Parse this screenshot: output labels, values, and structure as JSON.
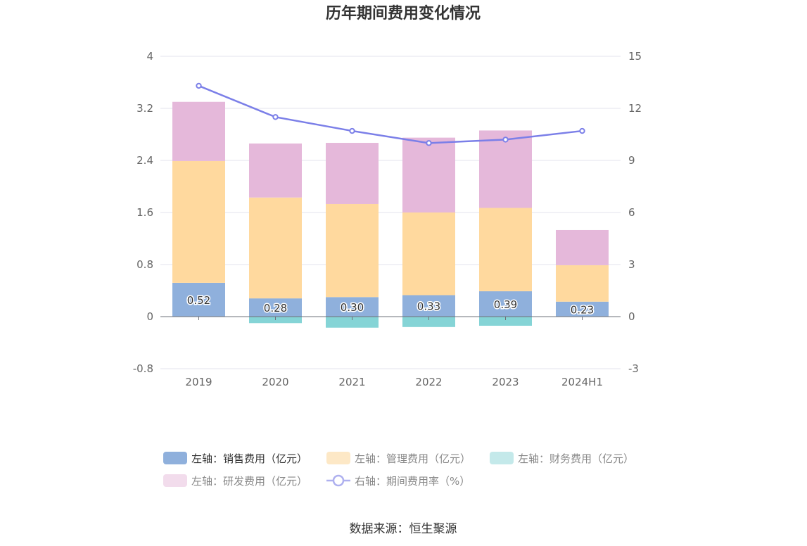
{
  "chart_data": {
    "type": "bar",
    "title": "历年期间费用变化情况",
    "categories": [
      "2019",
      "2020",
      "2021",
      "2022",
      "2023",
      "2024H1"
    ],
    "stacked": true,
    "left_axis": {
      "ylim": [
        -0.8,
        4
      ],
      "ticks": [
        "-0.8",
        "0",
        "0.8",
        "1.6",
        "2.4",
        "3.2",
        "4"
      ],
      "tick_values": [
        -0.8,
        0,
        0.8,
        1.6,
        2.4,
        3.2,
        4
      ]
    },
    "right_axis": {
      "ylim": [
        -3,
        15
      ],
      "ticks": [
        "-3",
        "0",
        "3",
        "6",
        "9",
        "12",
        "15"
      ],
      "tick_values": [
        -3,
        0,
        3,
        6,
        9,
        12,
        15
      ]
    },
    "series": [
      {
        "name": "左轴：销售费用（亿元）",
        "axis": "left",
        "kind": "bar",
        "color": "#8fb0dc",
        "values": [
          0.52,
          0.28,
          0.3,
          0.33,
          0.39,
          0.23
        ],
        "labels": [
          "0.52",
          "0.28",
          "0.30",
          "0.33",
          "0.39",
          "0.23"
        ]
      },
      {
        "name": "左轴：管理费用（亿元）",
        "axis": "left",
        "kind": "bar",
        "color": "#ffd99e",
        "values": [
          1.87,
          1.55,
          1.43,
          1.27,
          1.28,
          0.56
        ]
      },
      {
        "name": "左轴：财务费用（亿元）",
        "axis": "left",
        "kind": "bar",
        "color": "#85d4d6",
        "values": [
          0.0,
          -0.1,
          -0.17,
          -0.16,
          -0.14,
          0.0
        ]
      },
      {
        "name": "左轴：研发费用（亿元）",
        "axis": "left",
        "kind": "bar",
        "color": "#e5b8da",
        "values": [
          0.91,
          0.83,
          0.94,
          1.15,
          1.19,
          0.54
        ]
      },
      {
        "name": "右轴：期间费用率（%）",
        "axis": "right",
        "kind": "line",
        "color": "#7b7fe8",
        "values": [
          13.3,
          11.5,
          10.7,
          10.0,
          10.2,
          10.7
        ]
      }
    ],
    "grid": true,
    "legend_position": "bottom"
  },
  "source_text": "数据来源：恒生聚源"
}
